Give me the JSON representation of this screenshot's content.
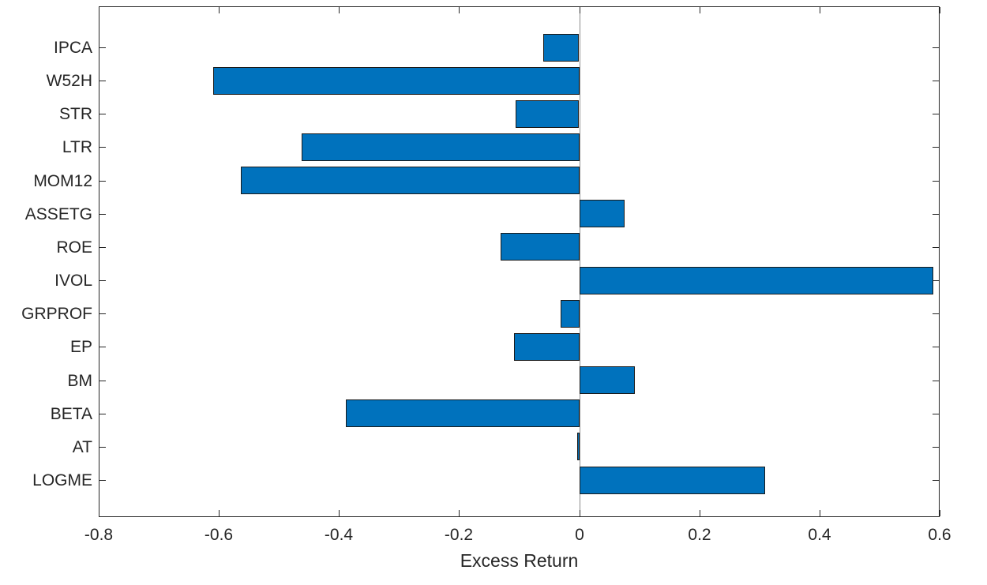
{
  "chart_data": {
    "type": "bar",
    "orientation": "horizontal",
    "title": "",
    "xlabel": "Excess Return",
    "ylabel": "",
    "categories": [
      "IPCA",
      "W52H",
      "STR",
      "LTR",
      "MOM12",
      "ASSETG",
      "ROE",
      "IVOL",
      "GRPROF",
      "EP",
      "BM",
      "BETA",
      "AT",
      "LOGME"
    ],
    "values": [
      -0.06,
      -0.61,
      -0.106,
      -0.462,
      -0.564,
      0.076,
      -0.131,
      0.59,
      -0.031,
      -0.109,
      0.092,
      -0.388,
      -0.003,
      0.31
    ],
    "xlim": [
      -0.8,
      0.6
    ],
    "xticks": [
      -0.8,
      -0.6,
      -0.4,
      -0.2,
      0,
      0.2,
      0.4,
      0.6
    ],
    "xtick_labels": [
      "-0.8",
      "-0.6",
      "-0.4",
      "-0.2",
      "0",
      "0.2",
      "0.4",
      "0.6"
    ],
    "grid": false,
    "legend": null,
    "colors": {
      "bar_fill": "#0072BD",
      "bar_edge": "#1a1a1a",
      "axis": "#262626",
      "zero_baseline": "#8c8c8c",
      "background": "#ffffff"
    }
  }
}
